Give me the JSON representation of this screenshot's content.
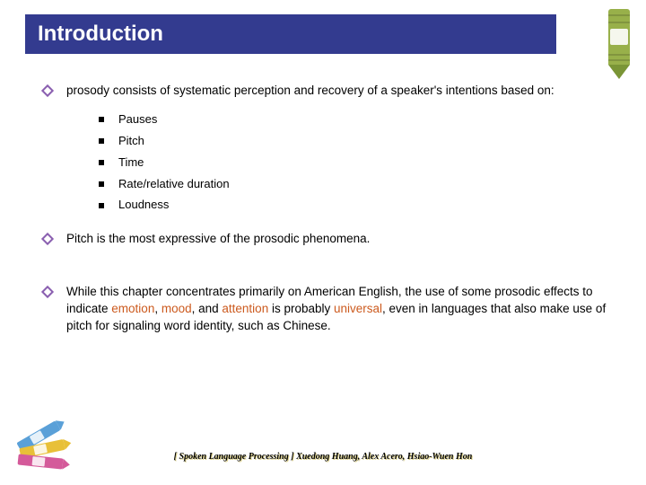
{
  "colors": {
    "title_bg": "#333b8f",
    "title_text": "#ffffff",
    "diamond": "#8a5fb0",
    "highlight": "#cc5a1e",
    "crayon_top_body": "#98b04a",
    "crayon_top_tip": "#7a9536",
    "crayon_bottom_1": "#5aa0d8",
    "crayon_bottom_2": "#e8c038",
    "crayon_bottom_3": "#d45a9a"
  },
  "title": "Introduction",
  "bullets": [
    {
      "text_parts": [
        {
          "t": "prosody consists of systematic perception and recovery of a speaker's intentions based on: "
        }
      ],
      "sub": [
        "Pauses",
        "Pitch",
        "Time",
        "Rate/relative duration",
        "Loudness"
      ]
    },
    {
      "text_parts": [
        {
          "t": "Pitch is the most expressive of the prosodic phenomena."
        }
      ]
    },
    {
      "text_parts": [
        {
          "t": "While this chapter concentrates primarily on American English, the use of some prosodic effects to indicate "
        },
        {
          "t": "emotion",
          "hl": true
        },
        {
          "t": ", "
        },
        {
          "t": "mood",
          "hl": true
        },
        {
          "t": ", and "
        },
        {
          "t": "attention",
          "hl": true
        },
        {
          "t": " is probably "
        },
        {
          "t": "universal",
          "hl": true
        },
        {
          "t": ", even in languages that also make use of pitch for signaling word identity, such as Chinese."
        }
      ]
    }
  ],
  "footer": "[ Spoken Language Processing ]  Xuedong Huang, Alex Acero, Hsiao-Wuen Hon"
}
